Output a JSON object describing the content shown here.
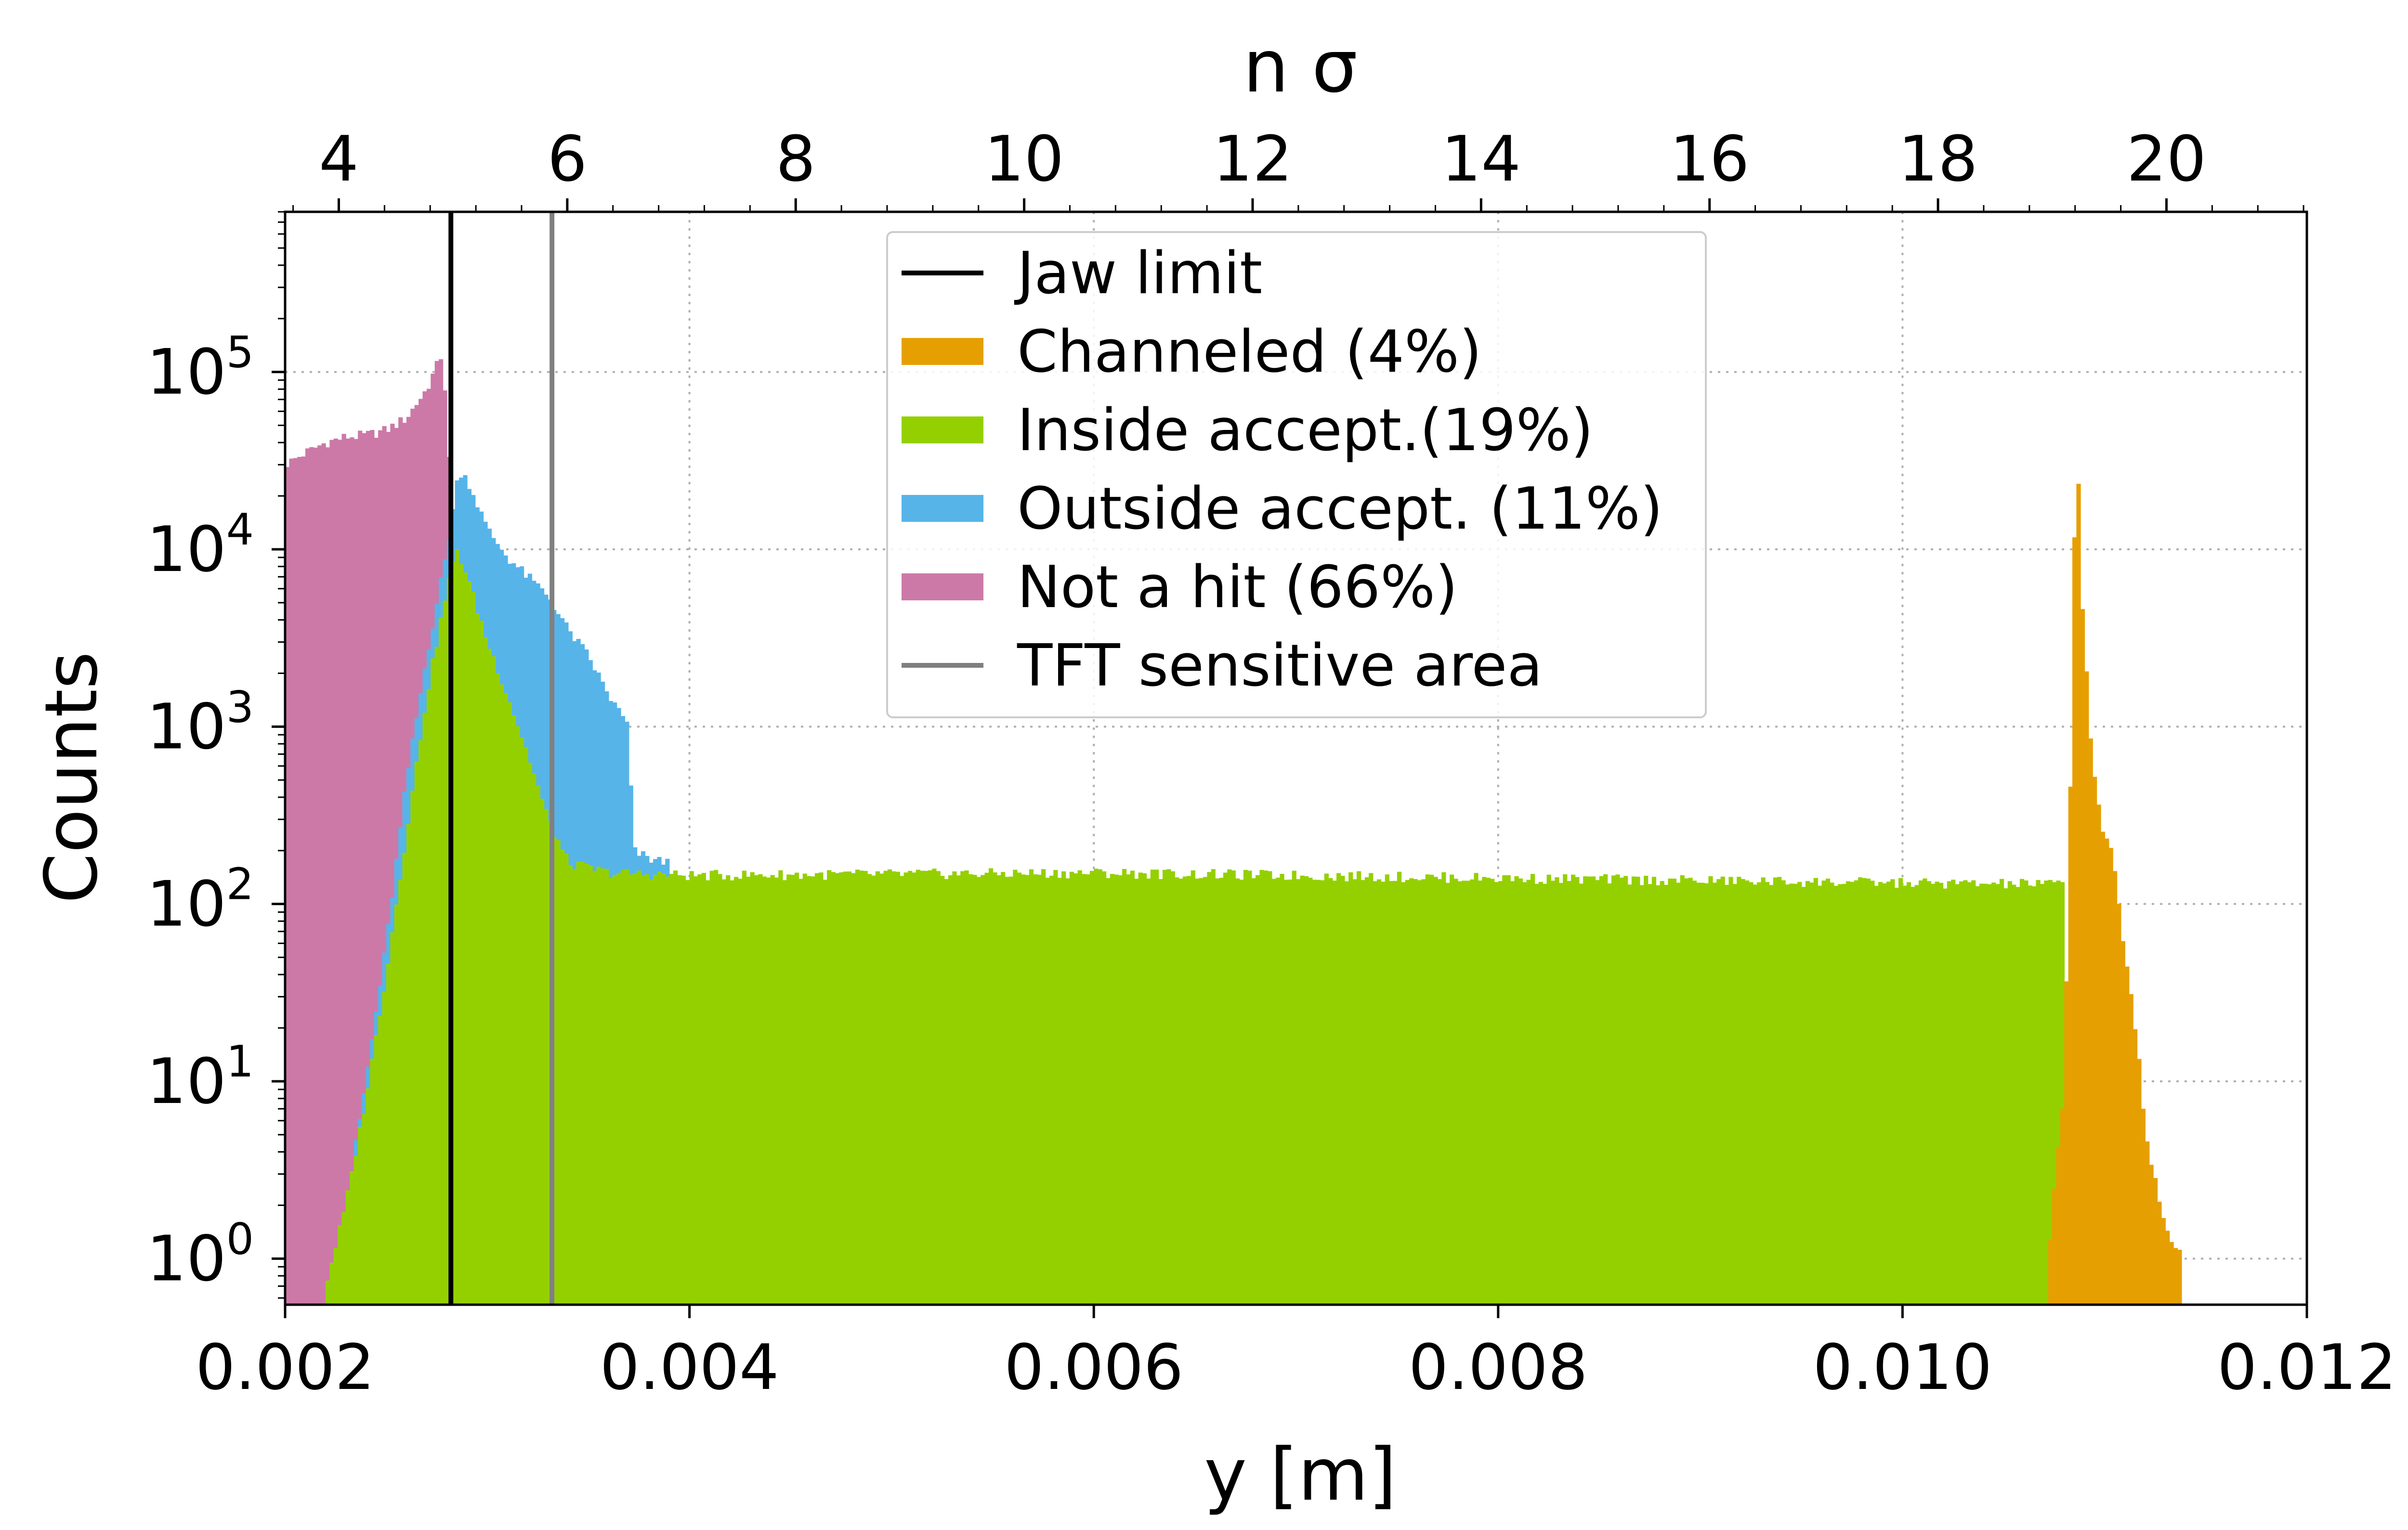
{
  "chart_data": {
    "type": "histogram",
    "xlabel": "y [m]",
    "ylabel": "Counts",
    "top_xlabel": "n σ",
    "x_range": [
      0.002,
      0.012
    ],
    "y_scale": "log",
    "y_range": [
      0.55,
      800000
    ],
    "grid": true,
    "legend_position": "upper-center",
    "x_ticks": [
      "0.002",
      "0.004",
      "0.006",
      "0.008",
      "0.010",
      "0.012"
    ],
    "top_ticks": [
      "4",
      "6",
      "8",
      "10",
      "12",
      "14",
      "16",
      "18",
      "20"
    ],
    "top_axis_map": {
      "sigma_at_0.002": 3.53,
      "meters_per_sigma": 0.000565
    },
    "y_ticks": [
      {
        "value": 1,
        "base": "10",
        "exp": "0"
      },
      {
        "value": 10,
        "base": "10",
        "exp": "1"
      },
      {
        "value": 100,
        "base": "10",
        "exp": "2"
      },
      {
        "value": 1000,
        "base": "10",
        "exp": "3"
      },
      {
        "value": 10000,
        "base": "10",
        "exp": "4"
      },
      {
        "value": 100000,
        "base": "10",
        "exp": "5"
      }
    ],
    "bin_width": 2e-05,
    "vlines": [
      {
        "name": "Jaw limit",
        "x": 0.00282,
        "color": "#000000"
      },
      {
        "name": "TFT sensitive area",
        "x": 0.00332,
        "color": "#808080"
      }
    ],
    "series": [
      {
        "name": "Not a hit (66%)",
        "color": "#cc79a7",
        "points": [
          [
            0.002,
            30000
          ],
          [
            0.0021,
            35000
          ],
          [
            0.0022,
            40000
          ],
          [
            0.0023,
            43000
          ],
          [
            0.0024,
            44000
          ],
          [
            0.0025,
            47000
          ],
          [
            0.0026,
            55000
          ],
          [
            0.0027,
            80000
          ],
          [
            0.00278,
            130000
          ],
          [
            0.00282,
            20000
          ],
          [
            0.0029,
            1
          ]
        ]
      },
      {
        "name": "Outside accept. (11%)",
        "color": "#56b4e9",
        "points": [
          [
            0.00226,
            1
          ],
          [
            0.0024,
            10
          ],
          [
            0.0025,
            60
          ],
          [
            0.0026,
            500
          ],
          [
            0.0027,
            2500
          ],
          [
            0.0028,
            10000
          ],
          [
            0.00286,
            28000
          ],
          [
            0.0029,
            25000
          ],
          [
            0.003,
            13000
          ],
          [
            0.0031,
            9000
          ],
          [
            0.0032,
            7000
          ],
          [
            0.0033,
            5500
          ],
          [
            0.0034,
            3500
          ],
          [
            0.0035,
            2500
          ],
          [
            0.0036,
            1500
          ],
          [
            0.0037,
            1000
          ],
          [
            0.00372,
            200
          ],
          [
            0.0038,
            180
          ],
          [
            0.0039,
            170
          ]
        ]
      },
      {
        "name": "Inside accept.(19%)",
        "color": "#94d000",
        "points": [
          [
            0.0022,
            0.7
          ],
          [
            0.0023,
            2
          ],
          [
            0.0024,
            8
          ],
          [
            0.0025,
            40
          ],
          [
            0.0026,
            250
          ],
          [
            0.0027,
            1500
          ],
          [
            0.0028,
            6000
          ],
          [
            0.00285,
            10000
          ],
          [
            0.0029,
            7000
          ],
          [
            0.003,
            3000
          ],
          [
            0.0031,
            1500
          ],
          [
            0.0032,
            700
          ],
          [
            0.0033,
            300
          ],
          [
            0.0034,
            170
          ],
          [
            0.0036,
            150
          ],
          [
            0.004,
            145
          ],
          [
            0.006,
            150
          ],
          [
            0.008,
            140
          ],
          [
            0.0104,
            130
          ],
          [
            0.0108,
            130
          ],
          [
            0.01082,
            0
          ]
        ]
      },
      {
        "name": "Channeled (4%)",
        "color": "#e69f00",
        "points": [
          [
            0.01072,
            1
          ],
          [
            0.0108,
            10
          ],
          [
            0.01082,
            150
          ],
          [
            0.01084,
            1500
          ],
          [
            0.01086,
            80000
          ],
          [
            0.01088,
            7000
          ],
          [
            0.0109,
            3500
          ],
          [
            0.01092,
            1200
          ],
          [
            0.01094,
            600
          ],
          [
            0.01098,
            300
          ],
          [
            0.011,
            250
          ],
          [
            0.01104,
            200
          ],
          [
            0.01108,
            80
          ],
          [
            0.0111,
            50
          ],
          [
            0.01114,
            25
          ],
          [
            0.01118,
            10
          ],
          [
            0.0112,
            5
          ],
          [
            0.01124,
            3
          ],
          [
            0.0113,
            1.5
          ],
          [
            0.01138,
            1
          ]
        ]
      }
    ],
    "legend": [
      {
        "kind": "line",
        "label": "Jaw limit",
        "color": "#000000"
      },
      {
        "kind": "patch",
        "label": "Channeled (4%)",
        "color": "#e69f00"
      },
      {
        "kind": "patch",
        "label": "Inside accept.(19%)",
        "color": "#94d000"
      },
      {
        "kind": "patch",
        "label": "Outside accept. (11%)",
        "color": "#56b4e9"
      },
      {
        "kind": "patch",
        "label": "Not a hit (66%)",
        "color": "#cc79a7"
      },
      {
        "kind": "line",
        "label": "TFT sensitive area",
        "color": "#808080"
      }
    ]
  }
}
